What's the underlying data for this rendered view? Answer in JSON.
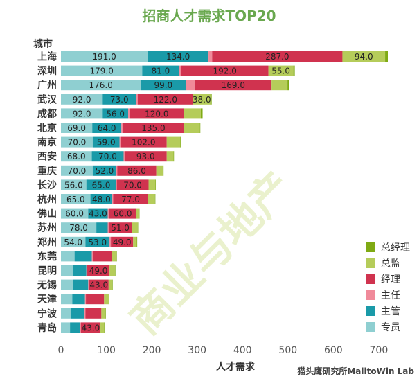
{
  "chart_data": {
    "type": "bar",
    "orientation": "horizontal",
    "stacked": true,
    "title": "招商人才需求TOP20",
    "ylabel": "城市",
    "xlabel": "人才需求",
    "xlim": [
      0,
      720
    ],
    "xticks": [
      0,
      100,
      200,
      300,
      400,
      500,
      600,
      700
    ],
    "categories": [
      "上海",
      "深圳",
      "广州",
      "武汉",
      "成都",
      "北京",
      "南京",
      "西安",
      "重庆",
      "长沙",
      "杭州",
      "佛山",
      "苏州",
      "郑州",
      "东莞",
      "昆明",
      "无锡",
      "天津",
      "宁波",
      "青岛"
    ],
    "series": [
      {
        "name": "专员",
        "color": "#8fcfd1",
        "values": [
          191,
          179,
          176,
          92,
          92,
          69,
          70,
          68,
          70,
          56,
          65,
          60,
          78,
          54,
          30,
          26,
          27,
          25,
          22,
          20
        ]
      },
      {
        "name": "主管",
        "color": "#1a9aa8",
        "values": [
          134,
          81,
          99,
          73,
          56,
          64,
          59,
          70,
          52,
          65,
          48,
          43,
          25,
          53,
          38,
          30,
          33,
          28,
          30,
          22
        ]
      },
      {
        "name": "主任",
        "color": "#f08a9a",
        "values": [
          8,
          5,
          20,
          4,
          3,
          3,
          2,
          2,
          2,
          2,
          2,
          3,
          2,
          3,
          2,
          2,
          2,
          2,
          2,
          2
        ]
      },
      {
        "name": "经理",
        "color": "#d0334f",
        "values": [
          287,
          192,
          169,
          122,
          120,
          135,
          102,
          93,
          86,
          70,
          77,
          60,
          51,
          49,
          42,
          49,
          43,
          40,
          35,
          43
        ]
      },
      {
        "name": "总监",
        "color": "#b5cc5a",
        "values": [
          94,
          55,
          35,
          38,
          37,
          35,
          30,
          15,
          15,
          15,
          15,
          6,
          13,
          8,
          10,
          12,
          8,
          10,
          9,
          8
        ]
      },
      {
        "name": "总经理",
        "color": "#7faa14",
        "values": [
          6,
          3,
          4,
          3,
          4,
          1,
          1,
          1,
          1,
          1,
          1,
          1,
          1,
          1,
          1,
          1,
          1,
          1,
          1,
          1
        ]
      }
    ],
    "data_labels": {
      "专员": [
        191,
        179,
        176,
        92,
        92,
        69,
        70,
        68,
        70,
        56,
        65,
        60,
        78,
        54,
        null,
        null,
        null,
        null,
        null,
        null
      ],
      "主管": [
        134,
        81,
        99,
        73,
        56,
        64,
        59,
        70,
        52,
        65,
        48,
        43,
        null,
        53,
        null,
        null,
        null,
        null,
        null,
        null
      ],
      "经理": [
        287,
        192,
        169,
        122,
        120,
        135,
        102,
        93,
        86,
        70,
        77,
        60,
        51,
        49,
        null,
        49,
        43,
        null,
        null,
        43
      ],
      "总监": [
        94,
        55,
        null,
        38,
        null,
        null,
        null,
        null,
        null,
        null,
        null,
        null,
        null,
        null,
        null,
        null,
        null,
        null,
        null,
        null
      ]
    },
    "legend_order": [
      "总经理",
      "总监",
      "经理",
      "主任",
      "主管",
      "专员"
    ],
    "legend_position": "bottom-right",
    "grid": false
  },
  "watermark": "商业与地产",
  "credit": "猫头鹰研究所MalltoWin Lab"
}
